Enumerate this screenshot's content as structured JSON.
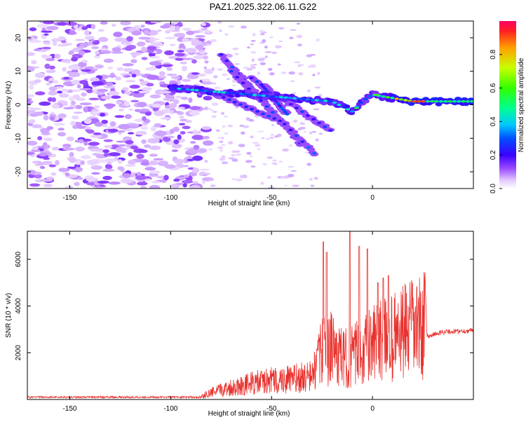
{
  "title": "PAZ1.2025.322.06.11.G22",
  "chart_data": [
    {
      "type": "heatmap",
      "title": "PAZ1.2025.322.06.11.G22",
      "xlabel": "Height of straight line (km)",
      "ylabel": "Frequency (Hz)",
      "xlim": [
        -171,
        50
      ],
      "ylim": [
        -25,
        25
      ],
      "xticks": [
        -150,
        -100,
        -50,
        0
      ],
      "yticks": [
        -20,
        -10,
        0,
        10,
        20
      ],
      "colorbar": {
        "label": "Normalized spectral amplitude",
        "range": [
          0,
          1
        ],
        "ticks": [
          0.0,
          0.2,
          0.4,
          0.6,
          0.8
        ]
      },
      "ridge": [
        {
          "x": -100,
          "y": 5
        },
        {
          "x": -80,
          "y": 4
        },
        {
          "x": -60,
          "y": 3
        },
        {
          "x": -40,
          "y": 2
        },
        {
          "x": -20,
          "y": 1
        },
        {
          "x": -10,
          "y": -2
        },
        {
          "x": -5,
          "y": 1
        },
        {
          "x": 0,
          "y": 3
        },
        {
          "x": 10,
          "y": 2
        },
        {
          "x": 20,
          "y": 1
        },
        {
          "x": 50,
          "y": 1
        }
      ]
    },
    {
      "type": "line",
      "xlabel": "Height of straight line (km)",
      "ylabel": "SNR (10 * v/v)",
      "xlim": [
        -171,
        50
      ],
      "ylim": [
        0,
        7200
      ],
      "xticks": [
        -150,
        -100,
        -50,
        0
      ],
      "yticks": [
        2000,
        4000,
        6000
      ],
      "color": "#e8312d",
      "envelope": [
        {
          "x": -171,
          "y": 100
        },
        {
          "x": -100,
          "y": 150
        },
        {
          "x": -85,
          "y": 200
        },
        {
          "x": -80,
          "y": 500
        },
        {
          "x": -70,
          "y": 900
        },
        {
          "x": -60,
          "y": 1200
        },
        {
          "x": -50,
          "y": 1400
        },
        {
          "x": -40,
          "y": 1500
        },
        {
          "x": -30,
          "y": 1700
        },
        {
          "x": -25,
          "y": 3500
        },
        {
          "x": -20,
          "y": 3800
        },
        {
          "x": -15,
          "y": 3000
        },
        {
          "x": -10,
          "y": 3200
        },
        {
          "x": -5,
          "y": 3600
        },
        {
          "x": 0,
          "y": 4000
        },
        {
          "x": 10,
          "y": 4600
        },
        {
          "x": 20,
          "y": 5200
        },
        {
          "x": 26,
          "y": 5500
        },
        {
          "x": 27,
          "y": 2800
        },
        {
          "x": 35,
          "y": 3000
        },
        {
          "x": 50,
          "y": 3050
        }
      ],
      "peaks": [
        {
          "x": -24.3,
          "y": 6750
        },
        {
          "x": -22.7,
          "y": 6300
        },
        {
          "x": -11.2,
          "y": 7200
        },
        {
          "x": -6.6,
          "y": 6550
        },
        {
          "x": -2.6,
          "y": 6450
        },
        {
          "x": 2.6,
          "y": 5000
        },
        {
          "x": 5.3,
          "y": 5200
        },
        {
          "x": 7.9,
          "y": 5300
        }
      ]
    }
  ]
}
